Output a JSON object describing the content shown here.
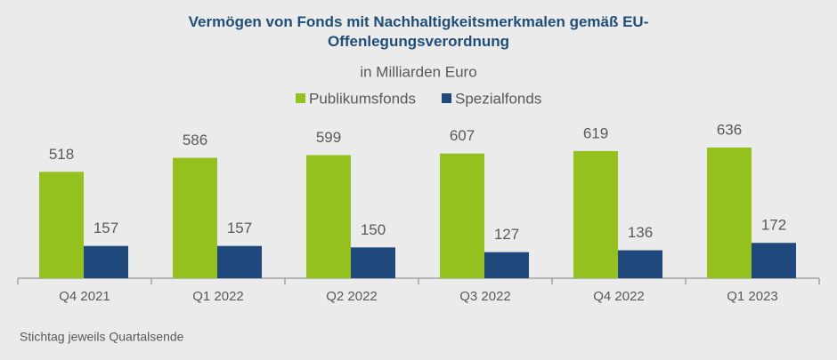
{
  "chart_data": {
    "type": "bar",
    "title": "Vermögen von Fonds mit Nachhaltigkeitsmerkmalen gemäß EU-Offenlegungsverordnung",
    "subtitle": "in Milliarden Euro",
    "categories": [
      "Q4 2021",
      "Q1 2022",
      "Q2 2022",
      "Q3 2022",
      "Q4 2022",
      "Q1 2023"
    ],
    "series": [
      {
        "name": "Publikumsfonds",
        "color": "#95c11f",
        "values": [
          518,
          586,
          599,
          607,
          619,
          636
        ]
      },
      {
        "name": "Spezialfonds",
        "color": "#1f497d",
        "values": [
          157,
          157,
          150,
          127,
          136,
          172
        ]
      }
    ],
    "note": "Stichtag jeweils Quartalsende"
  }
}
